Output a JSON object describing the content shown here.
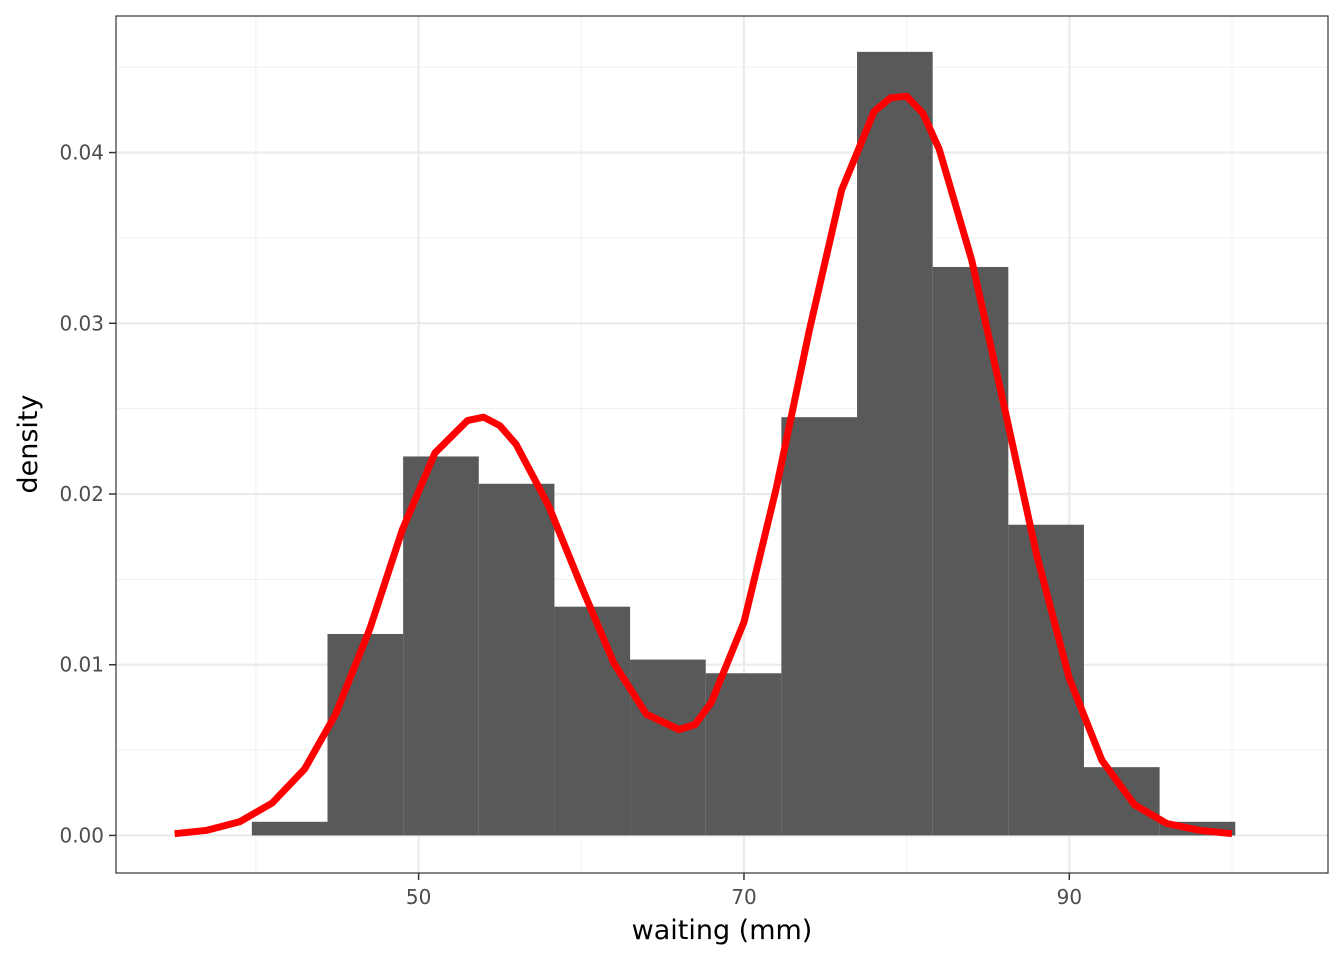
{
  "chart_data": {
    "type": "bar",
    "xlabel": "waiting (mm)",
    "ylabel": "density",
    "xlim": [
      31.4,
      105.9
    ],
    "ylim": [
      -0.0022,
      0.048
    ],
    "x_ticks": [
      50,
      70,
      90
    ],
    "x_minor_ticks": [
      40,
      60,
      80,
      100
    ],
    "y_ticks": [
      0.0,
      0.01,
      0.02,
      0.03,
      0.04
    ],
    "y_tick_labels": [
      "0.00",
      "0.01",
      "0.02",
      "0.03",
      "0.04"
    ],
    "y_minor_ticks": [
      0.005,
      0.015,
      0.025,
      0.035,
      0.045
    ],
    "grid": true,
    "bar_color": "#595959",
    "bins": [
      {
        "x0": 39.75,
        "x1": 44.4,
        "value": 0.0008
      },
      {
        "x0": 44.4,
        "x1": 49.05,
        "value": 0.0118
      },
      {
        "x0": 49.05,
        "x1": 53.7,
        "value": 0.0222
      },
      {
        "x0": 53.7,
        "x1": 58.35,
        "value": 0.0206
      },
      {
        "x0": 58.35,
        "x1": 63.0,
        "value": 0.0134
      },
      {
        "x0": 63.0,
        "x1": 67.65,
        "value": 0.0103
      },
      {
        "x0": 67.65,
        "x1": 72.3,
        "value": 0.0095
      },
      {
        "x0": 72.3,
        "x1": 76.95,
        "value": 0.0245
      },
      {
        "x0": 76.95,
        "x1": 81.6,
        "value": 0.0459
      },
      {
        "x0": 81.6,
        "x1": 86.25,
        "value": 0.0333
      },
      {
        "x0": 86.25,
        "x1": 90.9,
        "value": 0.0182
      },
      {
        "x0": 90.9,
        "x1": 95.55,
        "value": 0.004
      },
      {
        "x0": 95.55,
        "x1": 100.2,
        "value": 0.0008
      }
    ],
    "series": [
      {
        "type": "line",
        "color": "#ff0000",
        "x": [
          35.0,
          37.0,
          39.0,
          41.0,
          43.0,
          44.9,
          47.0,
          49.0,
          51.0,
          53.0,
          54.0,
          55.0,
          56.0,
          58.0,
          60.0,
          62.0,
          64.0,
          66.0,
          67.0,
          68.0,
          70.0,
          72.0,
          74.0,
          76.0,
          78.0,
          79.0,
          80.0,
          81.0,
          82.0,
          84.0,
          86.0,
          88.0,
          90.0,
          92.0,
          94.0,
          96.0,
          98.0,
          100.0
        ],
        "y": [
          0.0001,
          0.0003,
          0.0008,
          0.0019,
          0.0039,
          0.0071,
          0.0121,
          0.0179,
          0.0224,
          0.0243,
          0.0245,
          0.024,
          0.0229,
          0.0193,
          0.0146,
          0.0101,
          0.0071,
          0.0062,
          0.0065,
          0.0078,
          0.0125,
          0.0204,
          0.0295,
          0.0378,
          0.0424,
          0.0432,
          0.0433,
          0.0423,
          0.0402,
          0.0337,
          0.0251,
          0.0164,
          0.0092,
          0.0044,
          0.0018,
          0.0007,
          0.0003,
          0.0001
        ]
      }
    ]
  }
}
